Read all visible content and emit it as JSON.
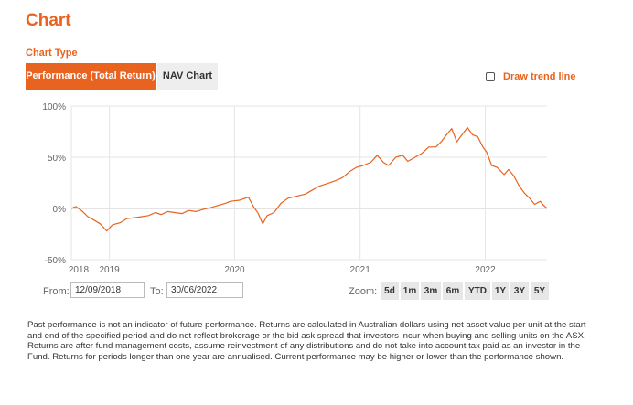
{
  "page": {
    "title": "Chart"
  },
  "chart_type": {
    "label": "Chart Type",
    "tabs": [
      {
        "label": "Performance (Total Return)",
        "active": true
      },
      {
        "label": "NAV Chart",
        "active": false
      }
    ]
  },
  "trend_line": {
    "label": "Draw trend line",
    "checked": false
  },
  "range": {
    "from_label": "From:",
    "from_value": "12/09/2018",
    "to_label": "To:",
    "to_value": "30/06/2022"
  },
  "zoom": {
    "label": "Zoom:",
    "buttons": [
      "5d",
      "1m",
      "3m",
      "6m",
      "YTD",
      "1Y",
      "3Y",
      "5Y"
    ]
  },
  "disclaimer": "Past performance is not an indicator of future performance. Returns are calculated in Australian dollars using net asset value per unit at the start and end of the specified period and do not reflect brokerage or the bid ask spread that investors incur when buying and selling units on the ASX. Returns are after fund management costs, assume reinvestment of any distributions and do not take into account tax paid as an investor in the Fund. Returns for periods longer than one year are annualised. Current performance may be higher or lower than the performance shown.",
  "colors": {
    "accent": "#e8631f",
    "tab_inactive": "#eeeeee",
    "grid": "#e6e6e6"
  },
  "chart_data": {
    "type": "line",
    "ylim": [
      -50,
      100
    ],
    "yticks": [
      "100%",
      "50%",
      "0%",
      "-50%"
    ],
    "ytick_values": [
      100,
      50,
      0,
      -50
    ],
    "xlim": [
      "2018-09-12",
      "2022-06-30"
    ],
    "xticks": [
      {
        "label": "2018",
        "date": "2018-09-12"
      },
      {
        "label": "2019",
        "date": "2019-01-01"
      },
      {
        "label": "2020",
        "date": "2020-01-01"
      },
      {
        "label": "2021",
        "date": "2021-01-01"
      },
      {
        "label": "2022",
        "date": "2022-01-01"
      }
    ],
    "series": [
      {
        "color": "#e8631f",
        "points": [
          [
            "2018-09-12",
            0
          ],
          [
            "2018-09-25",
            2
          ],
          [
            "2018-10-15",
            -3
          ],
          [
            "2018-10-30",
            -8
          ],
          [
            "2018-11-15",
            -11
          ],
          [
            "2018-12-05",
            -15
          ],
          [
            "2018-12-24",
            -22
          ],
          [
            "2019-01-10",
            -16
          ],
          [
            "2019-02-01",
            -14
          ],
          [
            "2019-02-20",
            -10
          ],
          [
            "2019-03-15",
            -9
          ],
          [
            "2019-04-05",
            -8
          ],
          [
            "2019-04-25",
            -7
          ],
          [
            "2019-05-15",
            -4
          ],
          [
            "2019-06-01",
            -6
          ],
          [
            "2019-06-20",
            -3
          ],
          [
            "2019-07-10",
            -4
          ],
          [
            "2019-08-01",
            -5
          ],
          [
            "2019-08-20",
            -2
          ],
          [
            "2019-09-10",
            -3
          ],
          [
            "2019-10-01",
            -1
          ],
          [
            "2019-10-25",
            1
          ],
          [
            "2019-11-15",
            3
          ],
          [
            "2019-12-05",
            5
          ],
          [
            "2019-12-20",
            7
          ],
          [
            "2020-01-15",
            8
          ],
          [
            "2020-02-10",
            11
          ],
          [
            "2020-02-25",
            2
          ],
          [
            "2020-03-10",
            -5
          ],
          [
            "2020-03-23",
            -15
          ],
          [
            "2020-04-05",
            -7
          ],
          [
            "2020-04-25",
            -4
          ],
          [
            "2020-05-15",
            5
          ],
          [
            "2020-06-05",
            10
          ],
          [
            "2020-06-30",
            12
          ],
          [
            "2020-07-25",
            14
          ],
          [
            "2020-08-15",
            18
          ],
          [
            "2020-09-05",
            22
          ],
          [
            "2020-09-25",
            24
          ],
          [
            "2020-10-20",
            27
          ],
          [
            "2020-11-10",
            30
          ],
          [
            "2020-12-01",
            36
          ],
          [
            "2020-12-20",
            40
          ],
          [
            "2021-01-10",
            42
          ],
          [
            "2021-02-01",
            45
          ],
          [
            "2021-02-20",
            52
          ],
          [
            "2021-03-10",
            45
          ],
          [
            "2021-03-25",
            42
          ],
          [
            "2021-04-15",
            50
          ],
          [
            "2021-05-05",
            52
          ],
          [
            "2021-05-20",
            46
          ],
          [
            "2021-06-10",
            50
          ],
          [
            "2021-07-01",
            54
          ],
          [
            "2021-07-20",
            60
          ],
          [
            "2021-08-10",
            60
          ],
          [
            "2021-08-25",
            65
          ],
          [
            "2021-09-10",
            72
          ],
          [
            "2021-09-25",
            78
          ],
          [
            "2021-10-10",
            65
          ],
          [
            "2021-10-25",
            72
          ],
          [
            "2021-11-10",
            79
          ],
          [
            "2021-11-25",
            72
          ],
          [
            "2021-12-10",
            70
          ],
          [
            "2021-12-25",
            60
          ],
          [
            "2022-01-05",
            55
          ],
          [
            "2022-01-20",
            42
          ],
          [
            "2022-02-05",
            40
          ],
          [
            "2022-02-25",
            33
          ],
          [
            "2022-03-10",
            38
          ],
          [
            "2022-03-25",
            32
          ],
          [
            "2022-04-10",
            22
          ],
          [
            "2022-04-25",
            15
          ],
          [
            "2022-05-10",
            10
          ],
          [
            "2022-05-25",
            4
          ],
          [
            "2022-06-10",
            7
          ],
          [
            "2022-06-20",
            3
          ],
          [
            "2022-06-30",
            0
          ]
        ]
      }
    ]
  }
}
